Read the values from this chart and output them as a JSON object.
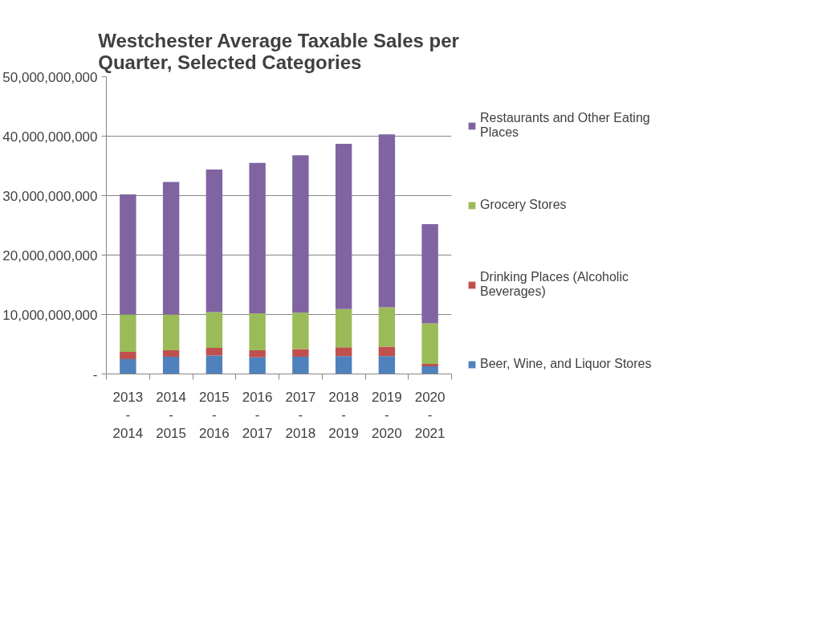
{
  "chart_data": {
    "type": "bar",
    "title": "Westchester Average Taxable Sales per Quarter, Selected Categories",
    "categories": [
      "2013\n-\n2014",
      "2014\n-\n2015",
      "2015\n-\n2016",
      "2016\n-\n2017",
      "2017\n-\n2018",
      "2018\n-\n2019",
      "2019\n-\n2020",
      "2020\n-\n2021"
    ],
    "stacked": true,
    "series": [
      {
        "name": "Beer, Wine, and Liquor Stores",
        "color": "#4f81bd",
        "values": [
          2500000000,
          2900000000,
          3100000000,
          2800000000,
          2900000000,
          3000000000,
          3000000000,
          1300000000
        ]
      },
      {
        "name": "Drinking Places (Alcoholic Beverages)",
        "color": "#c0504d",
        "values": [
          1200000000,
          1100000000,
          1300000000,
          1200000000,
          1300000000,
          1500000000,
          1600000000,
          400000000
        ]
      },
      {
        "name": "Grocery Stores",
        "color": "#9bbb59",
        "values": [
          6300000000,
          6000000000,
          6000000000,
          6200000000,
          6100000000,
          6400000000,
          6600000000,
          6800000000
        ]
      },
      {
        "name": "Restaurants and Other Eating Places",
        "color": "#8064a2",
        "values": [
          20200000000,
          22300000000,
          24000000000,
          25300000000,
          26500000000,
          27800000000,
          29100000000,
          16700000000
        ]
      }
    ],
    "ylim": [
      0,
      50000000000
    ],
    "yticks": [
      {
        "value": 0,
        "label": "-"
      },
      {
        "value": 10000000000,
        "label": "10,000,000,000"
      },
      {
        "value": 20000000000,
        "label": "20,000,000,000"
      },
      {
        "value": 30000000000,
        "label": "30,000,000,000"
      },
      {
        "value": 40000000000,
        "label": "40,000,000,000"
      },
      {
        "value": 50000000000,
        "label": "50,000,000,000"
      }
    ],
    "grid": "y",
    "legend": "right"
  }
}
